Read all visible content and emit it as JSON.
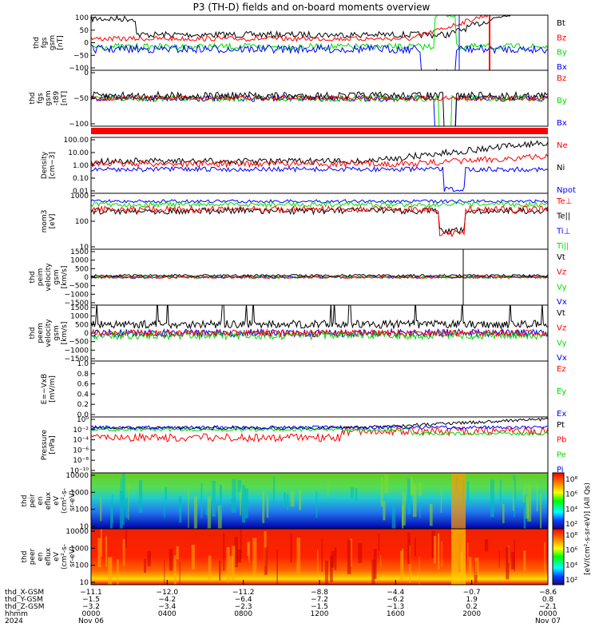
{
  "title": "P3 (TH-D) fields and on-board moments overview",
  "colors": {
    "black": "#000000",
    "red": "#ff0000",
    "green": "#00dd00",
    "blue": "#0000ff",
    "frame": "#000000"
  },
  "chart_data": {
    "type": "line",
    "x_range": [
      "2024-11-06 00:00",
      "2024-11-07 00:00"
    ],
    "panels": [
      {
        "id": "fgs",
        "ylabel": [
          "thd",
          "fgs",
          "gsm",
          "[nT]"
        ],
        "yticks": [
          "100",
          "50",
          "0",
          "−50",
          "−100"
        ],
        "ylim": [
          -100,
          100
        ],
        "series": [
          {
            "name": "Bt",
            "color": "black"
          },
          {
            "name": "Bz",
            "color": "red"
          },
          {
            "name": "By",
            "color": "green"
          },
          {
            "name": "Bx",
            "color": "blue"
          }
        ]
      },
      {
        "id": "fgs_lp",
        "ylabel": [
          "thd",
          "fgs",
          "gsm",
          "-t89",
          "[nT]"
        ],
        "yticks": [
          "0",
          "−50",
          "−100"
        ],
        "ylim": [
          -130,
          20
        ],
        "series": [
          {
            "name": "Bz",
            "color": "red"
          },
          {
            "name": "By",
            "color": "green"
          },
          {
            "name": "Bx",
            "color": "blue"
          }
        ]
      },
      {
        "id": "density",
        "ylabel": [
          "Density",
          "[cm−3]"
        ],
        "yticks": [
          "100.00",
          "10.00",
          "1.00",
          "0.10",
          "0.01"
        ],
        "ylim": [
          0.003,
          300
        ],
        "log": true,
        "series": [
          {
            "name": "Ne",
            "color": "red"
          },
          {
            "name": "Ni",
            "color": "black"
          },
          {
            "name": "Npot",
            "color": "blue"
          }
        ]
      },
      {
        "id": "temp",
        "ylabel": [
          "mom3",
          "[eV]"
        ],
        "yticks": [
          "1000",
          "100",
          "10"
        ],
        "ylim": [
          1,
          5000
        ],
        "log": true,
        "series": [
          {
            "name": "Te⊥",
            "color": "red"
          },
          {
            "name": "Te||",
            "color": "black"
          },
          {
            "name": "Ti⊥",
            "color": "blue"
          },
          {
            "name": "Ti||",
            "color": "green"
          }
        ]
      },
      {
        "id": "vi",
        "ylabel": [
          "thd",
          "peim",
          "velocity",
          "gsm",
          "[km/s]"
        ],
        "yticks": [
          "1500",
          "1000",
          "500",
          "0",
          "−500",
          "−1000",
          "−1500"
        ],
        "ylim": [
          -1500,
          1500
        ],
        "series": [
          {
            "name": "Vt",
            "color": "black"
          },
          {
            "name": "Vz",
            "color": "red"
          },
          {
            "name": "Vy",
            "color": "green"
          },
          {
            "name": "Vx",
            "color": "blue"
          }
        ]
      },
      {
        "id": "ve",
        "ylabel": [
          "thd",
          "peem",
          "velocity",
          "gsm",
          "[km/s]"
        ],
        "yticks": [
          "1500",
          "1000",
          "500",
          "0",
          "−500",
          "−1000",
          "−1500"
        ],
        "ylim": [
          -1500,
          1500
        ],
        "series": [
          {
            "name": "Vt",
            "color": "black"
          },
          {
            "name": "Vz",
            "color": "red"
          },
          {
            "name": "Vy",
            "color": "green"
          },
          {
            "name": "Vx",
            "color": "blue"
          }
        ]
      },
      {
        "id": "efield",
        "ylabel": [
          "E=−VxB",
          "[mV/m]"
        ],
        "yticks": [
          "1.0",
          "0.8",
          "0.6",
          "0.4",
          "0.2",
          "0.0"
        ],
        "ylim": [
          0,
          1
        ],
        "series": [
          {
            "name": "Ez",
            "color": "red"
          },
          {
            "name": "Ey",
            "color": "green"
          },
          {
            "name": "Ex",
            "color": "blue"
          }
        ]
      },
      {
        "id": "pressure",
        "ylabel": [
          "Pressure",
          "[nPa]"
        ],
        "yticks": [
          "10⁰",
          "10⁻²",
          "10⁻⁴",
          "10⁻⁶",
          "10⁻⁸",
          "10⁻¹⁰"
        ],
        "ylim": [
          1e-10,
          10
        ],
        "log": true,
        "series": [
          {
            "name": "Pt",
            "color": "black"
          },
          {
            "name": "Pb",
            "color": "red"
          },
          {
            "name": "Pe",
            "color": "green"
          },
          {
            "name": "Pi",
            "color": "blue"
          }
        ]
      },
      {
        "id": "ion_spec",
        "type": "heatmap",
        "ylabel": [
          "thd",
          "peir",
          "en",
          "eflux",
          "eV",
          "(cm²-s-",
          "sr-eV)"
        ],
        "yticks": [
          "10000",
          "1000",
          "100",
          "10"
        ],
        "colorbar": [
          "10⁸",
          "10⁶",
          "10⁴",
          "10²"
        ]
      },
      {
        "id": "ele_spec",
        "type": "heatmap",
        "ylabel": [
          "thd",
          "peer",
          "en",
          "eflux",
          "eV",
          "(cm²-s-",
          "sr-eV)"
        ],
        "yticks": [
          "10000",
          "1000",
          "100",
          "10"
        ],
        "colorbar": [
          "10⁸",
          "10⁶",
          "10⁴",
          "10²"
        ]
      }
    ],
    "colorbar_label": "[eV/(cm²-s-sr-eV)] (All Qs)",
    "status_bar_color": "red",
    "xaxis_rows": [
      {
        "label": "thd_X-GSM",
        "values": [
          "−11.1",
          "−12.0",
          "−11.2",
          "−8.8",
          "−4.4",
          "−0.7",
          "−8.6"
        ]
      },
      {
        "label": "thd_Y-GSM",
        "values": [
          "−1.5",
          "−4.2",
          "−6.4",
          "−7.2",
          "−6.2",
          "1.9",
          "0.8"
        ]
      },
      {
        "label": "thd_Z-GSM",
        "values": [
          "−3.2",
          "−3.4",
          "−2.3",
          "−1.5",
          "−1.3",
          "0.2",
          "−2.1"
        ]
      },
      {
        "label": "hhmm",
        "values": [
          "0000",
          "0400",
          "0800",
          "1200",
          "1600",
          "2000",
          "0000"
        ]
      },
      {
        "label": "2024",
        "values": [
          "Nov 06",
          "",
          "",
          "",
          "",
          "",
          "Nov 07"
        ]
      }
    ]
  }
}
